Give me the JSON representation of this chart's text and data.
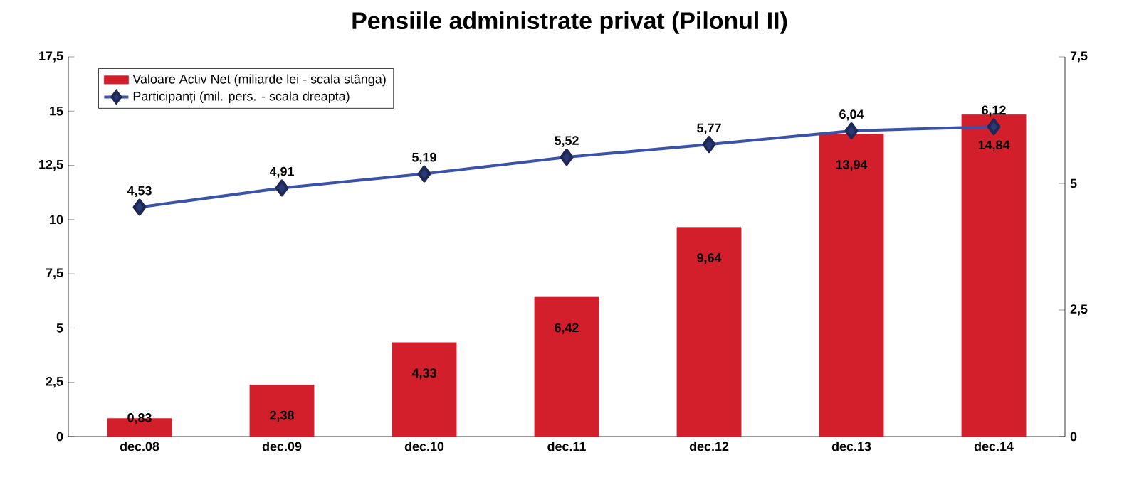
{
  "chart_data": {
    "type": "bar",
    "title": "Pensiile administrate privat (Pilonul II)",
    "categories": [
      "dec.08",
      "dec.09",
      "dec.10",
      "dec.11",
      "dec.12",
      "dec.13",
      "dec.14"
    ],
    "series": [
      {
        "name": "Valoare Activ Net (miliarde lei - scala stânga)",
        "color": "#d21f2b",
        "values": [
          0.83,
          2.38,
          4.33,
          6.42,
          9.64,
          13.94,
          14.84
        ],
        "value_labels": [
          "0,83",
          "2,38",
          "4,33",
          "6,42",
          "9,64",
          "13,94",
          "14,84"
        ]
      },
      {
        "name": "Participanți (mil. pers. - scala dreapta)",
        "type": "line",
        "axis": "y2",
        "color": "#3a52a8",
        "values": [
          4.53,
          4.91,
          5.19,
          5.52,
          5.77,
          6.04,
          6.12
        ],
        "value_labels": [
          "4,53",
          "4,91",
          "5,19",
          "5,52",
          "5,77",
          "6,04",
          "6,12"
        ]
      }
    ],
    "ylim": [
      0,
      17.5
    ],
    "yticks": [
      0,
      {
        "value": 2.5,
        "label": "2,5"
      },
      5,
      {
        "value": 7.5,
        "label": "7,5"
      },
      10,
      {
        "value": 12.5,
        "label": "12,5"
      },
      15,
      {
        "value": 17.5,
        "label": "17,5"
      }
    ],
    "y2lim": [
      0,
      7.5
    ],
    "y2ticks": [
      0,
      {
        "value": 2.5,
        "label": "2,5"
      },
      5,
      {
        "value": 7.5,
        "label": "7,5"
      }
    ],
    "marker": "diamond",
    "line_style": "solid",
    "legend": "top left"
  }
}
